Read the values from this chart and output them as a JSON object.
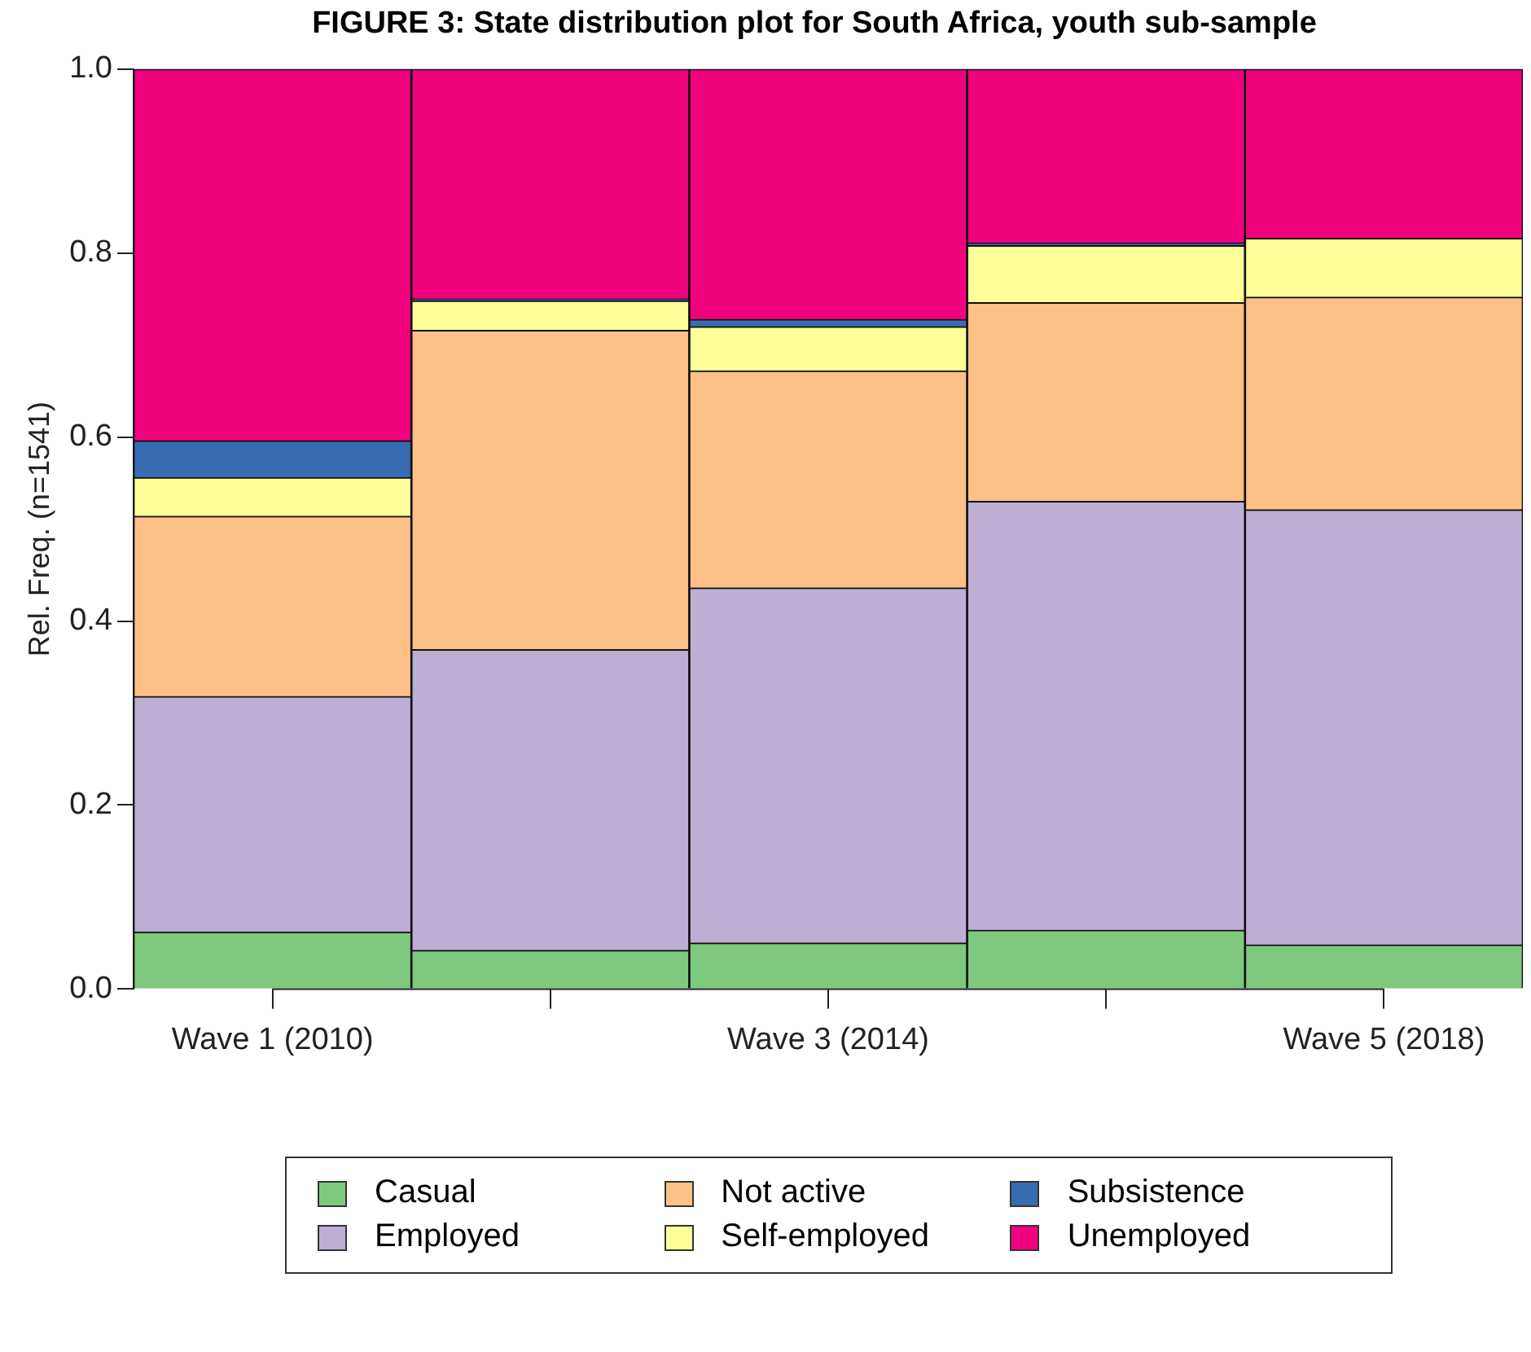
{
  "chart_data": {
    "type": "bar",
    "stacked": true,
    "title": "FIGURE 3: State distribution plot for South Africa, youth sub-sample",
    "ylabel": "Rel. Freq. (n=1541)",
    "categories": [
      "Wave 1 (2010)",
      null,
      "Wave 3 (2014)",
      null,
      "Wave 5 (2018)"
    ],
    "series": [
      {
        "name": "Casual",
        "color": "#7fc97f",
        "values": [
          0.062,
          0.042,
          0.05,
          0.064,
          0.048
        ]
      },
      {
        "name": "Employed",
        "color": "#beaed4",
        "values": [
          0.256,
          0.327,
          0.386,
          0.466,
          0.473
        ]
      },
      {
        "name": "Not active",
        "color": "#fdc086",
        "values": [
          0.196,
          0.347,
          0.236,
          0.216,
          0.231
        ]
      },
      {
        "name": "Self-employed",
        "color": "#ffff99",
        "values": [
          0.042,
          0.032,
          0.048,
          0.062,
          0.064
        ]
      },
      {
        "name": "Subsistence",
        "color": "#386cb0",
        "values": [
          0.04,
          0.002,
          0.008,
          0.003,
          0
        ]
      },
      {
        "name": "Unemployed",
        "color": "#f0027f",
        "values": [
          0.404,
          0.25,
          0.272,
          0.189,
          0.184
        ]
      }
    ],
    "ylim": [
      0,
      1
    ],
    "yticks": [
      {
        "value": 0,
        "label": "0.0"
      },
      {
        "value": 0.2,
        "label": "0.2"
      },
      {
        "value": 0.4,
        "label": "0.4"
      },
      {
        "value": 0.6,
        "label": "0.6"
      },
      {
        "value": 0.8,
        "label": "0.8"
      },
      {
        "value": 1,
        "label": "1.0"
      }
    ],
    "grid": false,
    "legend": "bottom"
  }
}
